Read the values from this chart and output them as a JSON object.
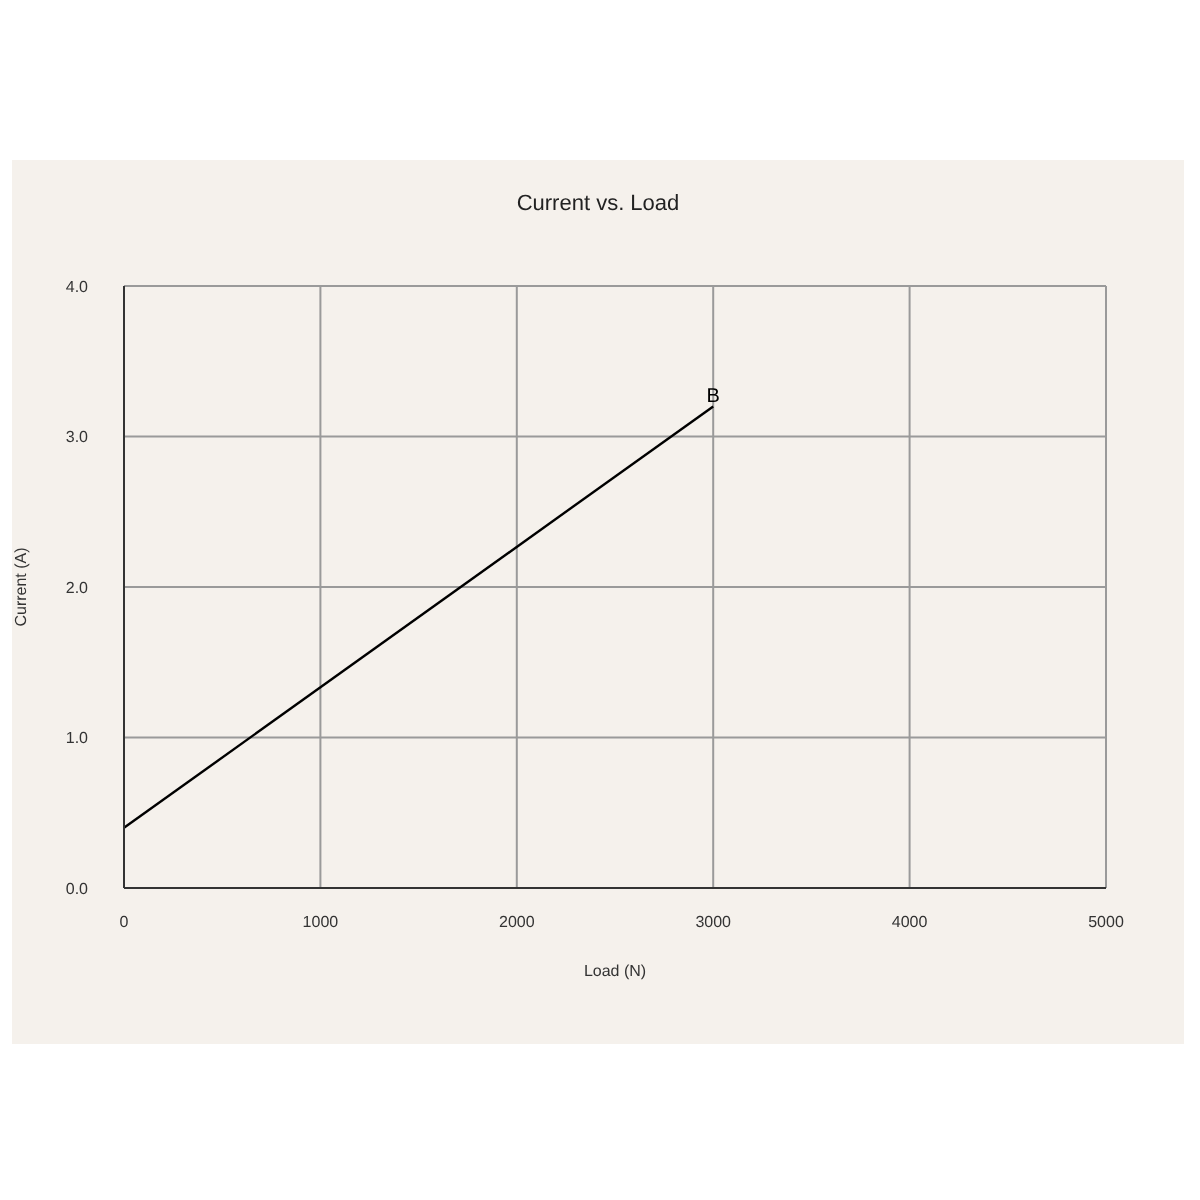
{
  "chart_data": {
    "type": "line",
    "title": "Current vs. Load",
    "xlabel": "Load (N)",
    "ylabel": "Current (A)",
    "x": [
      0,
      3000
    ],
    "series": [
      {
        "color": "#000000",
        "values": [
          0.4,
          3.2
        ]
      }
    ],
    "xlim": [
      0,
      5000
    ],
    "xticks": [
      0,
      1000,
      2000,
      3000,
      4000,
      5000
    ],
    "ylim": [
      0,
      4
    ],
    "yticks": [
      {
        "value": 0,
        "label": "0.0"
      },
      {
        "value": 1,
        "label": "1.0"
      },
      {
        "value": 2,
        "label": "2.0"
      },
      {
        "value": 3,
        "label": "3.0"
      },
      {
        "value": 4,
        "label": "4.0"
      }
    ],
    "grid": true,
    "marker": "none",
    "line_style": "solid",
    "annotations": [
      {
        "text": "B",
        "x": 3000,
        "y": 3.2
      }
    ]
  }
}
